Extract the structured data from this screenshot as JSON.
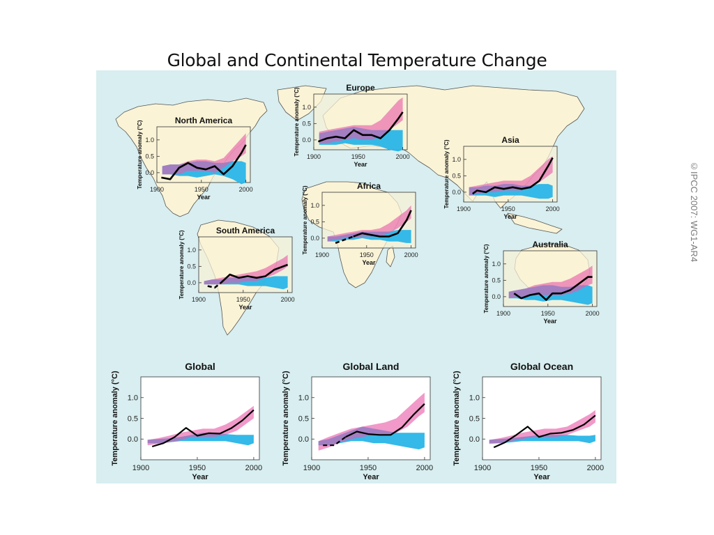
{
  "page": {
    "title": "Global and Continental Temperature Change",
    "credit": "©IPCC 2007: WG1-AR4"
  },
  "colors": {
    "sea": "#d8eef0",
    "land": "#faf3d6",
    "natural_band": "#29b5e8",
    "all_forcings_band": "#e85aa8",
    "overlap": "#7b5ec9",
    "observed": "#000000"
  },
  "chart_data": [
    {
      "type": "line",
      "title": "North America",
      "xlabel": "Year",
      "ylabel": "Temperature anomaly (°C)",
      "xlim": [
        1900,
        2005
      ],
      "ylim": [
        -0.3,
        1.4
      ],
      "xticks": [
        "1900",
        "1950",
        "2000"
      ],
      "yticks": [
        "0.0",
        "0.5",
        "1.0"
      ],
      "x": [
        1906,
        1915,
        1925,
        1935,
        1945,
        1955,
        1965,
        1975,
        1985,
        1995,
        2000
      ],
      "natural_band": {
        "lower": [
          -0.05,
          -0.05,
          -0.1,
          -0.1,
          -0.15,
          -0.1,
          -0.05,
          -0.1,
          -0.2,
          -0.35,
          -0.3
        ],
        "upper": [
          0.2,
          0.25,
          0.25,
          0.3,
          0.35,
          0.35,
          0.3,
          0.3,
          0.35,
          0.35,
          0.3
        ]
      },
      "all_forcings_band": {
        "lower": [
          -0.05,
          -0.05,
          -0.05,
          0.05,
          0.05,
          0.05,
          0.0,
          0.15,
          0.35,
          0.5,
          0.6
        ],
        "upper": [
          0.2,
          0.25,
          0.25,
          0.35,
          0.4,
          0.4,
          0.35,
          0.45,
          0.75,
          1.05,
          1.2
        ]
      },
      "observed": {
        "x": [
          1905,
          1915,
          1925,
          1935,
          1945,
          1955,
          1965,
          1975,
          1985,
          1995,
          2000
        ],
        "values": [
          -0.15,
          -0.2,
          0.15,
          0.3,
          0.15,
          0.1,
          0.2,
          -0.05,
          0.2,
          0.6,
          0.85
        ],
        "dashed_before": null
      }
    },
    {
      "type": "line",
      "title": "Europe",
      "xlabel": "Year",
      "ylabel": "Temperature anomaly (°C)",
      "xlim": [
        1900,
        2005
      ],
      "ylim": [
        -0.3,
        1.4
      ],
      "xticks": [
        "1900",
        "1950",
        "2000"
      ],
      "yticks": [
        "0.0",
        "0.5",
        "1.0"
      ],
      "x": [
        1906,
        1915,
        1925,
        1935,
        1945,
        1955,
        1965,
        1975,
        1985,
        1995,
        2000
      ],
      "natural_band": {
        "lower": [
          -0.15,
          -0.15,
          -0.15,
          -0.1,
          -0.15,
          -0.15,
          -0.15,
          -0.2,
          -0.3,
          -0.35,
          -0.3
        ],
        "upper": [
          0.2,
          0.25,
          0.3,
          0.35,
          0.4,
          0.35,
          0.3,
          0.3,
          0.3,
          0.3,
          0.3
        ]
      },
      "all_forcings_band": {
        "lower": [
          -0.1,
          -0.1,
          -0.05,
          0.0,
          0.05,
          0.0,
          0.0,
          0.1,
          0.3,
          0.5,
          0.6
        ],
        "upper": [
          0.25,
          0.3,
          0.35,
          0.4,
          0.45,
          0.45,
          0.45,
          0.6,
          0.9,
          1.2,
          1.3
        ]
      },
      "observed": {
        "x": [
          1905,
          1915,
          1925,
          1935,
          1945,
          1955,
          1965,
          1975,
          1985,
          1995,
          2000
        ],
        "values": [
          -0.05,
          0.05,
          0.1,
          0.05,
          0.3,
          0.15,
          0.15,
          0.05,
          0.3,
          0.65,
          0.85
        ],
        "dashed_before": null
      }
    },
    {
      "type": "line",
      "title": "Asia",
      "xlabel": "Year",
      "ylabel": "Temperature anomaly (°C)",
      "xlim": [
        1900,
        2005
      ],
      "ylim": [
        -0.3,
        1.4
      ],
      "xticks": [
        "1900",
        "1950",
        "2000"
      ],
      "yticks": [
        "0.0",
        "0.5",
        "1.0"
      ],
      "x": [
        1906,
        1915,
        1925,
        1935,
        1945,
        1955,
        1965,
        1975,
        1985,
        1995,
        2000
      ],
      "natural_band": {
        "lower": [
          -0.1,
          -0.1,
          -0.1,
          -0.15,
          -0.1,
          -0.1,
          -0.1,
          -0.15,
          -0.2,
          -0.2,
          -0.15
        ],
        "upper": [
          0.15,
          0.15,
          0.2,
          0.2,
          0.25,
          0.25,
          0.2,
          0.2,
          0.25,
          0.25,
          0.2
        ]
      },
      "all_forcings_band": {
        "lower": [
          -0.1,
          -0.05,
          0.0,
          0.0,
          0.05,
          0.05,
          0.05,
          0.15,
          0.3,
          0.5,
          0.6
        ],
        "upper": [
          0.15,
          0.2,
          0.25,
          0.3,
          0.35,
          0.35,
          0.35,
          0.5,
          0.75,
          1.0,
          1.1
        ]
      },
      "observed": {
        "x": [
          1910,
          1915,
          1925,
          1935,
          1945,
          1955,
          1965,
          1975,
          1985,
          1995,
          2000
        ],
        "values": [
          -0.05,
          0.05,
          0.0,
          0.15,
          0.1,
          0.15,
          0.1,
          0.15,
          0.35,
          0.8,
          1.05
        ],
        "dashed_before": null
      }
    },
    {
      "type": "line",
      "title": "Africa",
      "xlabel": "Year",
      "ylabel": "Temperature anomaly (°C)",
      "xlim": [
        1900,
        2005
      ],
      "ylim": [
        -0.3,
        1.4
      ],
      "xticks": [
        "1900",
        "1950",
        "2000"
      ],
      "yticks": [
        "0.0",
        "0.5",
        "1.0"
      ],
      "x": [
        1906,
        1915,
        1925,
        1935,
        1945,
        1955,
        1965,
        1975,
        1985,
        1995,
        2000
      ],
      "natural_band": {
        "lower": [
          -0.1,
          -0.1,
          -0.05,
          -0.05,
          0.0,
          -0.05,
          -0.05,
          -0.1,
          -0.1,
          -0.15,
          -0.15
        ],
        "upper": [
          0.05,
          0.05,
          0.1,
          0.15,
          0.2,
          0.2,
          0.2,
          0.2,
          0.25,
          0.25,
          0.25
        ]
      },
      "all_forcings_band": {
        "lower": [
          -0.1,
          -0.05,
          0.0,
          0.0,
          0.05,
          0.05,
          0.05,
          0.15,
          0.3,
          0.5,
          0.6
        ],
        "upper": [
          0.05,
          0.1,
          0.15,
          0.2,
          0.25,
          0.25,
          0.3,
          0.45,
          0.65,
          0.85,
          1.0
        ]
      },
      "observed": {
        "x": [
          1915,
          1925,
          1935,
          1945,
          1955,
          1965,
          1975,
          1985,
          1995,
          2000
        ],
        "values": [
          -0.15,
          -0.05,
          0.05,
          0.15,
          0.1,
          0.05,
          0.05,
          0.15,
          0.55,
          0.85
        ],
        "dashed_before": 1935
      }
    },
    {
      "type": "line",
      "title": "South America",
      "xlabel": "Year",
      "ylabel": "Temperature anomaly (°C)",
      "xlim": [
        1900,
        2005
      ],
      "ylim": [
        -0.3,
        1.4
      ],
      "xticks": [
        "1900",
        "1950",
        "2000"
      ],
      "yticks": [
        "0.0",
        "0.5",
        "1.0"
      ],
      "x": [
        1906,
        1915,
        1925,
        1935,
        1945,
        1955,
        1965,
        1975,
        1985,
        1995,
        2000
      ],
      "natural_band": {
        "lower": [
          -0.05,
          -0.05,
          -0.05,
          -0.05,
          -0.05,
          -0.1,
          -0.1,
          -0.1,
          -0.15,
          -0.2,
          -0.15
        ],
        "upper": [
          0.05,
          0.1,
          0.1,
          0.15,
          0.15,
          0.15,
          0.15,
          0.15,
          0.2,
          0.2,
          0.2
        ]
      },
      "all_forcings_band": {
        "lower": [
          -0.05,
          -0.05,
          -0.05,
          0.0,
          0.0,
          0.05,
          0.05,
          0.15,
          0.25,
          0.4,
          0.5
        ],
        "upper": [
          0.05,
          0.1,
          0.15,
          0.2,
          0.25,
          0.3,
          0.35,
          0.45,
          0.6,
          0.75,
          0.85
        ]
      },
      "observed": {
        "x": [
          1910,
          1918,
          1925,
          1935,
          1945,
          1955,
          1965,
          1975,
          1985,
          1995,
          2000
        ],
        "values": [
          -0.1,
          -0.15,
          0.0,
          0.25,
          0.15,
          0.2,
          0.15,
          0.2,
          0.4,
          0.5,
          0.55
        ],
        "dashed_before": 1925
      }
    },
    {
      "type": "line",
      "title": "Australia",
      "xlabel": "Year",
      "ylabel": "Temperature anomaly (°C)",
      "xlim": [
        1900,
        2005
      ],
      "ylim": [
        -0.3,
        1.4
      ],
      "xticks": [
        "1900",
        "1950",
        "2000"
      ],
      "yticks": [
        "0.0",
        "0.5",
        "1.0"
      ],
      "x": [
        1906,
        1915,
        1925,
        1935,
        1945,
        1955,
        1965,
        1975,
        1985,
        1995,
        2000
      ],
      "natural_band": {
        "lower": [
          -0.05,
          -0.05,
          -0.1,
          -0.1,
          -0.15,
          -0.1,
          -0.1,
          -0.15,
          -0.2,
          -0.25,
          -0.2
        ],
        "upper": [
          0.15,
          0.2,
          0.25,
          0.3,
          0.35,
          0.35,
          0.3,
          0.3,
          0.35,
          0.35,
          0.3
        ]
      },
      "all_forcings_band": {
        "lower": [
          -0.05,
          0.0,
          0.0,
          0.05,
          0.05,
          0.05,
          0.05,
          0.1,
          0.2,
          0.35,
          0.4
        ],
        "upper": [
          0.15,
          0.2,
          0.25,
          0.35,
          0.4,
          0.45,
          0.45,
          0.55,
          0.7,
          0.85,
          0.95
        ]
      },
      "observed": {
        "x": [
          1912,
          1920,
          1930,
          1940,
          1948,
          1955,
          1965,
          1975,
          1985,
          1995,
          2000
        ],
        "values": [
          0.1,
          -0.05,
          0.05,
          0.1,
          -0.1,
          0.1,
          0.1,
          0.2,
          0.4,
          0.6,
          0.6
        ],
        "dashed_before": null
      }
    },
    {
      "type": "line",
      "title": "Global",
      "xlabel": "Year",
      "ylabel": "Temperature anomaly (°C)",
      "xlim": [
        1900,
        2005
      ],
      "ylim": [
        -0.5,
        1.5
      ],
      "xticks": [
        "1900",
        "1950",
        "2000"
      ],
      "yticks": [
        "0.0",
        "0.5",
        "1.0"
      ],
      "x": [
        1906,
        1915,
        1925,
        1935,
        1945,
        1955,
        1965,
        1975,
        1985,
        1995,
        2000
      ],
      "natural_band": {
        "lower": [
          -0.1,
          -0.1,
          -0.08,
          -0.05,
          -0.05,
          -0.05,
          -0.05,
          -0.05,
          -0.1,
          -0.15,
          -0.1
        ],
        "upper": [
          -0.02,
          0.0,
          0.02,
          0.05,
          0.1,
          0.15,
          0.15,
          0.12,
          0.1,
          0.1,
          0.1
        ]
      },
      "all_forcings_band": {
        "lower": [
          -0.15,
          -0.12,
          -0.08,
          -0.03,
          0.05,
          0.05,
          0.05,
          0.1,
          0.2,
          0.4,
          0.5
        ],
        "upper": [
          -0.02,
          0.02,
          0.08,
          0.15,
          0.2,
          0.25,
          0.25,
          0.35,
          0.5,
          0.7,
          0.8
        ]
      },
      "observed": {
        "x": [
          1910,
          1920,
          1930,
          1940,
          1950,
          1960,
          1970,
          1980,
          1990,
          2000
        ],
        "values": [
          -0.18,
          -0.1,
          0.05,
          0.27,
          0.08,
          0.14,
          0.13,
          0.26,
          0.45,
          0.7
        ],
        "dashed_before": null
      }
    },
    {
      "type": "line",
      "title": "Global Land",
      "xlabel": "Year",
      "ylabel": "Temperature anomaly (°C)",
      "xlim": [
        1900,
        2005
      ],
      "ylim": [
        -0.5,
        1.5
      ],
      "xticks": [
        "1900",
        "1950",
        "2000"
      ],
      "yticks": [
        "0.0",
        "0.5",
        "1.0"
      ],
      "x": [
        1906,
        1915,
        1925,
        1935,
        1945,
        1955,
        1965,
        1975,
        1985,
        1995,
        2000
      ],
      "natural_band": {
        "lower": [
          -0.15,
          -0.15,
          -0.1,
          -0.05,
          -0.05,
          -0.1,
          -0.1,
          -0.15,
          -0.2,
          -0.25,
          -0.2
        ],
        "upper": [
          -0.05,
          0.0,
          0.1,
          0.2,
          0.3,
          0.25,
          0.2,
          0.15,
          0.15,
          0.15,
          0.15
        ]
      },
      "all_forcings_band": {
        "lower": [
          -0.28,
          -0.2,
          -0.08,
          0.0,
          0.05,
          0.1,
          0.1,
          0.15,
          0.3,
          0.55,
          0.65
        ],
        "upper": [
          -0.05,
          0.05,
          0.15,
          0.25,
          0.3,
          0.35,
          0.4,
          0.5,
          0.75,
          1.0,
          1.12
        ]
      },
      "observed": {
        "x": [
          1910,
          1920,
          1930,
          1940,
          1950,
          1960,
          1970,
          1980,
          1990,
          2000
        ],
        "values": [
          -0.15,
          -0.15,
          0.05,
          0.18,
          0.12,
          0.1,
          0.1,
          0.28,
          0.58,
          0.85
        ],
        "dashed_before": 1930
      }
    },
    {
      "type": "line",
      "title": "Global Ocean",
      "xlabel": "Year",
      "ylabel": "Temperature anomaly (°C)",
      "xlim": [
        1900,
        2005
      ],
      "ylim": [
        -0.5,
        1.5
      ],
      "xticks": [
        "1900",
        "1950",
        "2000"
      ],
      "yticks": [
        "0.0",
        "0.5",
        "1.0"
      ],
      "x": [
        1906,
        1915,
        1925,
        1935,
        1945,
        1955,
        1965,
        1975,
        1985,
        1995,
        2000
      ],
      "natural_band": {
        "lower": [
          -0.1,
          -0.1,
          -0.08,
          -0.05,
          -0.05,
          -0.05,
          -0.05,
          -0.05,
          -0.05,
          -0.1,
          -0.05
        ],
        "upper": [
          -0.02,
          0.0,
          0.02,
          0.05,
          0.08,
          0.1,
          0.1,
          0.1,
          0.08,
          0.08,
          0.1
        ]
      },
      "all_forcings_band": {
        "lower": [
          -0.12,
          -0.1,
          -0.05,
          0.0,
          0.05,
          0.05,
          0.05,
          0.1,
          0.2,
          0.3,
          0.4
        ],
        "upper": [
          -0.02,
          0.02,
          0.08,
          0.15,
          0.2,
          0.25,
          0.25,
          0.3,
          0.45,
          0.6,
          0.7
        ]
      },
      "observed": {
        "x": [
          1910,
          1920,
          1930,
          1940,
          1950,
          1960,
          1970,
          1980,
          1990,
          2000
        ],
        "values": [
          -0.2,
          -0.08,
          0.1,
          0.3,
          0.05,
          0.13,
          0.15,
          0.22,
          0.35,
          0.57
        ],
        "dashed_before": null
      }
    }
  ]
}
